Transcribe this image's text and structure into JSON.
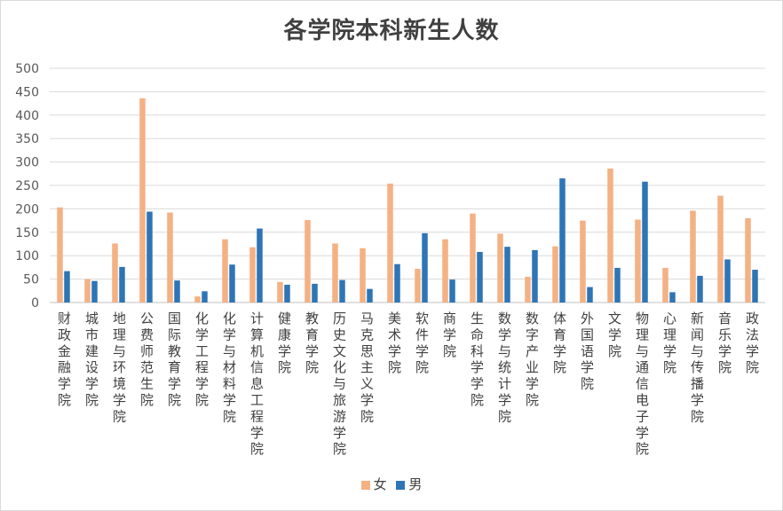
{
  "chart_data": {
    "type": "bar",
    "title": "各学院本科新生人数",
    "xlabel": "",
    "ylabel": "",
    "ylim": [
      0,
      500
    ],
    "yticks": [
      0,
      50,
      100,
      150,
      200,
      250,
      300,
      350,
      400,
      450,
      500
    ],
    "grid": true,
    "legend_position": "bottom",
    "categories": [
      "财政金融学院",
      "城市建设学院",
      "地理与环境学院",
      "公费师范生院",
      "国际教育学院",
      "化学工程学院",
      "化学与材料学院",
      "计算机信息工程学院",
      "健康学院",
      "教育学院",
      "历史文化与旅游学院",
      "马克思主义学院",
      "美术学院",
      "软件学院",
      "商学院",
      "生命科学学院",
      "数学与统计学院",
      "数字产业学院",
      "体育学院",
      "外国语学院",
      "文学院",
      "物理与通信电子学院",
      "心理学院",
      "新闻与传播学院",
      "音乐学院",
      "政法学院"
    ],
    "series": [
      {
        "name": "女",
        "color": "#F4B183",
        "values": [
          203,
          50,
          126,
          436,
          192,
          13,
          135,
          118,
          44,
          176,
          126,
          116,
          254,
          72,
          135,
          190,
          147,
          55,
          120,
          175,
          286,
          177,
          74,
          196,
          228,
          180
        ]
      },
      {
        "name": "男",
        "color": "#2E75B6",
        "values": [
          67,
          46,
          76,
          194,
          47,
          24,
          81,
          158,
          38,
          40,
          48,
          29,
          82,
          148,
          49,
          108,
          119,
          112,
          265,
          33,
          74,
          258,
          22,
          57,
          92,
          70
        ]
      }
    ]
  }
}
